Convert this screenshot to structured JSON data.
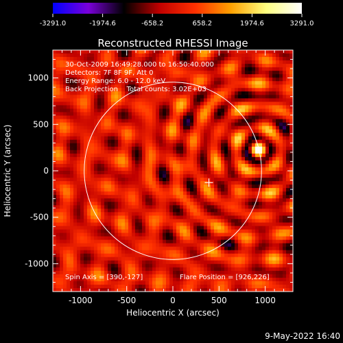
{
  "colorbar": {
    "ticks": [
      "-3291.0",
      "-1974.6",
      "-658.2",
      "658.2",
      "1974.6",
      "3291.0"
    ],
    "vmin": -3291.0,
    "vmax": 3291.0,
    "colormap": [
      "#0000ff",
      "#7a00d9",
      "#000000",
      "#c00000",
      "#ff3000",
      "#ffa000",
      "#ffff80",
      "#ffffff"
    ]
  },
  "chart_data": {
    "type": "heatmap",
    "title": "Reconstructed RHESSI Image",
    "xlabel": "Heliocentric X (arcsec)",
    "ylabel": "Heliocentric Y (arcsec)",
    "xlim": [
      -1300,
      1300
    ],
    "ylim": [
      -1300,
      1300
    ],
    "x_ticks": [
      -1000,
      -500,
      0,
      500,
      1000
    ],
    "y_ticks": [
      -1000,
      -500,
      0,
      500,
      1000
    ],
    "annotations": [
      "30-Oct-2009 16:49:28.000 to 16:50:40.000",
      "Detectors: 7F 8F 9F, Att 0",
      "Energy Range: 6.0 - 12.0 keV",
      "Back Projection    Total counts: 3.02E+03"
    ],
    "spin_axis_label": "Spin Axis = [390,-127]",
    "flare_position_label": "Flare Position = [926,226]",
    "spin_axis": [
      390,
      -127
    ],
    "flare_position": [
      926,
      226
    ],
    "solar_disk": {
      "center": [
        0,
        0
      ],
      "radius": 960
    },
    "peak_value": 3291.0,
    "grid": false
  },
  "footer": {
    "date": "9-May-2022 16:40"
  }
}
